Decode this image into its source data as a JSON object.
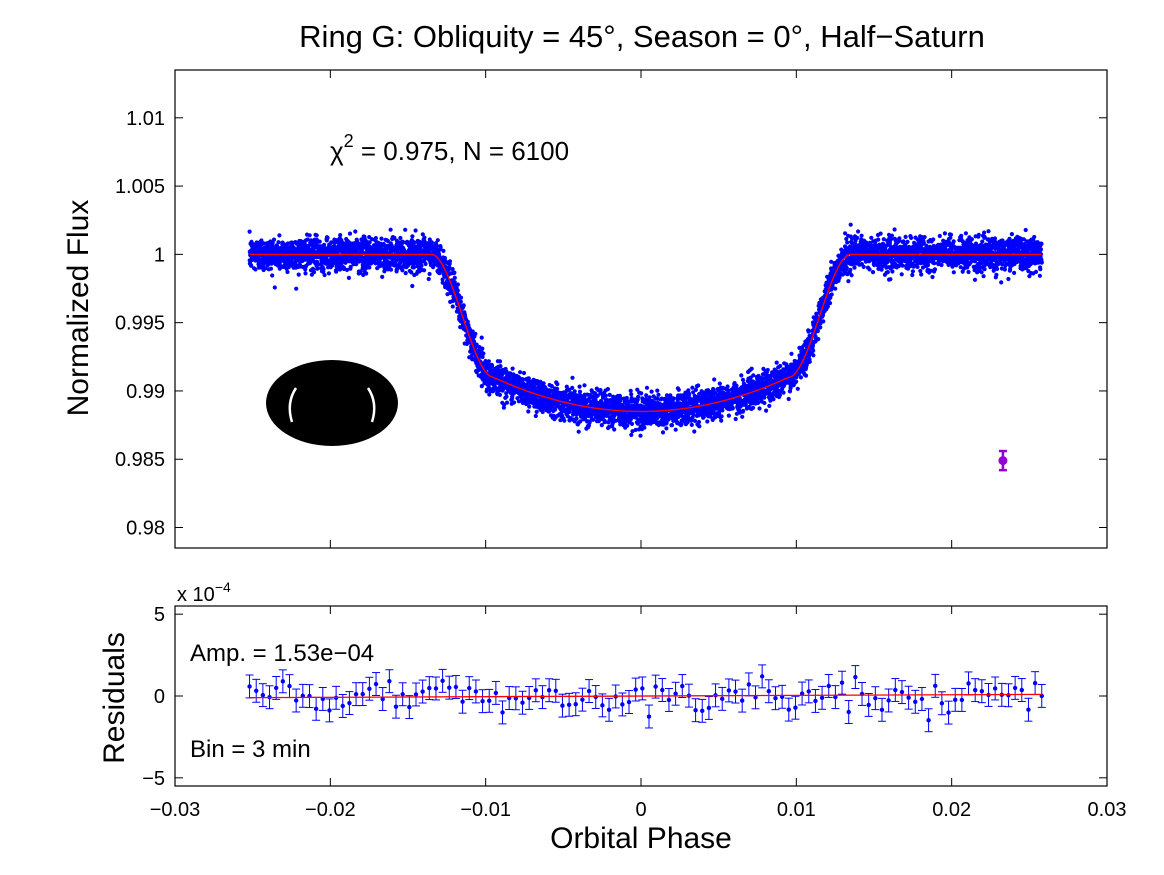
{
  "chart_data": [
    {
      "type": "scatter",
      "panel": "top",
      "title": "Ring G: Obliquity = 45°, Season = 0°, Half−Saturn",
      "ylabel": "Normalized Flux",
      "xlabel": "",
      "xlim": [
        -0.03,
        0.03
      ],
      "ylim": [
        0.9785,
        1.0135
      ],
      "xticks": [
        -0.03,
        -0.02,
        -0.01,
        0,
        0.01,
        0.02,
        0.03
      ],
      "yticks": [
        0.98,
        0.985,
        0.99,
        0.995,
        1,
        1.005,
        1.01
      ],
      "ytick_labels": [
        "0.98",
        "0.985",
        "0.99",
        "0.995",
        "1",
        "1.005",
        "1.01"
      ],
      "annotation": {
        "chi_symbol": "χ",
        "chi_power": "2",
        "chi_text": " = 0.975, N = 6100"
      },
      "n_points": 6100,
      "noise_sigma": 0.0006,
      "series": [
        {
          "name": "data",
          "color": "#0000ff",
          "x_range": [
            -0.0252,
            0.0258
          ],
          "model_profile": {
            "baseline": 1.0,
            "ingress_start": -0.0135,
            "ingress_end": -0.0095,
            "egress_start": 0.0095,
            "egress_end": 0.0135,
            "depth_at_contact": 0.991,
            "depth_center": 0.9885
          }
        },
        {
          "name": "model",
          "color": "#ff0000",
          "x_range": [
            -0.0252,
            0.0258
          ]
        }
      ],
      "errorbar_marker": {
        "x": 0.0233,
        "y": 0.9849,
        "err": 0.0007,
        "color": "#9400d3"
      },
      "inset_icon": {
        "name": "ringed-planet-silhouette"
      }
    },
    {
      "type": "scatter",
      "panel": "bottom",
      "ylabel": "Residuals",
      "xlabel": "Orbital Phase",
      "xlim": [
        -0.03,
        0.03
      ],
      "ylim": [
        -5.5,
        5.5
      ],
      "y_scale_label": {
        "base": "x 10",
        "exponent": "−4"
      },
      "xticks": [
        -0.03,
        -0.02,
        -0.01,
        0,
        0.01,
        0.02,
        0.03
      ],
      "xtick_labels": [
        "−0.03",
        "−0.02",
        "−0.01",
        "0",
        "0.01",
        "0.02",
        "0.03"
      ],
      "yticks": [
        -5,
        0,
        5
      ],
      "ytick_labels": [
        "−5",
        "0",
        "5"
      ],
      "amp_label": "Amp. = 1.53e−04",
      "bin_label": "Bin = 3 min",
      "binned_points": {
        "count": 120,
        "x_range": [
          -0.0252,
          0.0258
        ],
        "error": 0.7,
        "color": "#0000ff"
      },
      "trend_line": {
        "color": "#ff0000",
        "x": [
          -0.0252,
          0.0258
        ],
        "y": [
          -0.1,
          0.1
        ]
      }
    }
  ]
}
